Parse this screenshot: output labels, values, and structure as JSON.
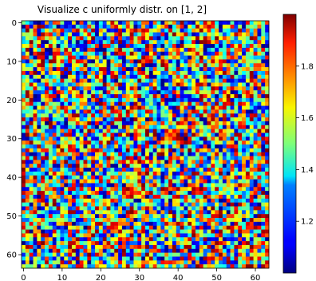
{
  "chart_data": {
    "type": "heatmap",
    "title": "Visualize c uniformly distr. on [1, 2]",
    "xlabel": "",
    "ylabel": "",
    "rows": 64,
    "cols": 64,
    "xlim": [
      -0.5,
      63.5
    ],
    "ylim": [
      63.5,
      -0.5
    ],
    "x_ticks": [
      "0",
      "10",
      "20",
      "30",
      "40",
      "50",
      "60"
    ],
    "y_ticks": [
      "0",
      "10",
      "20",
      "30",
      "40",
      "50",
      "60"
    ],
    "value_range": [
      1.0,
      2.0
    ],
    "colormap": "jet",
    "colorbar": {
      "range": [
        1.0,
        2.0
      ],
      "ticks": [
        "1.2",
        "1.4",
        "1.6",
        "1.8"
      ]
    },
    "grid": false,
    "seed": 20240517
  }
}
